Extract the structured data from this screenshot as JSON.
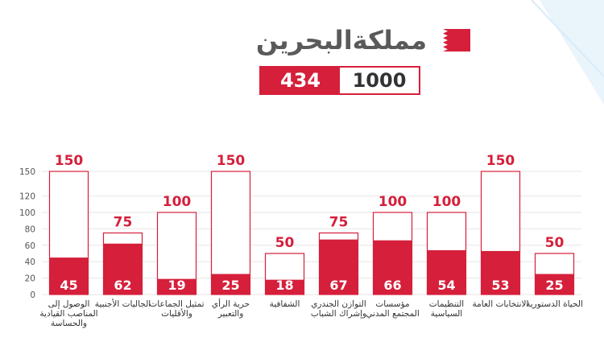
{
  "header": {
    "title": "مملكةالبحرين",
    "flag_colors": {
      "red": "#d51f3b",
      "white": "#ffffff"
    },
    "score_achieved": "434",
    "score_total": "1000"
  },
  "colors": {
    "accent": "#d51f3b",
    "axis_text": "#555555",
    "grid": "#e6e6e6"
  },
  "chart_data": {
    "type": "bar",
    "ylim": [
      0,
      150
    ],
    "yticks": [
      0,
      20,
      40,
      60,
      80,
      100,
      120,
      150
    ],
    "grid": true,
    "categories": [
      "الوصول إلى المناصب القيادية والحساسة",
      "الجاليات الأجنبية",
      "تمثيل الجماعات والأقليات",
      "حرية الرأي والتعبير",
      "الشفافية",
      "التوازن الجندري وإشراك الشباب",
      "مؤسسات المجتمع المدني",
      "التنظيمات السياسية",
      "الانتخابات العامة",
      "الحياة الدستورية"
    ],
    "series": [
      {
        "values": [
          150,
          75,
          100,
          150,
          50,
          75,
          100,
          100,
          150,
          50
        ]
      },
      {
        "values": [
          45,
          62,
          19,
          25,
          18,
          67,
          66,
          54,
          53,
          25
        ]
      }
    ]
  }
}
